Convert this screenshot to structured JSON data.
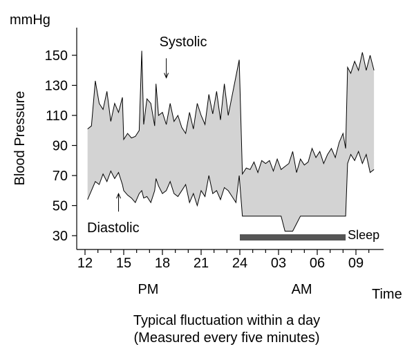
{
  "chart_data": {
    "type": "area",
    "unit_label": "mmHg",
    "ylabel": "Blood Pressure",
    "xlabel": "Time",
    "caption_line1": "Typical fluctuation within a day",
    "caption_line2": "(Measured every five minutes)",
    "ylim": [
      24,
      160
    ],
    "y_ticks": [
      30,
      50,
      70,
      90,
      110,
      130,
      150
    ],
    "x_range_hours": [
      12,
      34.6
    ],
    "x_ticks": [
      {
        "hour": 12,
        "label": "12"
      },
      {
        "hour": 15,
        "label": "15"
      },
      {
        "hour": 18,
        "label": "18"
      },
      {
        "hour": 21,
        "label": "21"
      },
      {
        "hour": 24,
        "label": "24"
      },
      {
        "hour": 27,
        "label": "03"
      },
      {
        "hour": 30,
        "label": "06"
      },
      {
        "hour": 33,
        "label": "09"
      }
    ],
    "periods": [
      {
        "label": "PM",
        "hour": 16.9
      },
      {
        "label": "AM",
        "hour": 28.8
      }
    ],
    "annotations": [
      {
        "label": "Systolic",
        "hour": 18.3,
        "arrow_from": 148,
        "arrow_to": 135
      },
      {
        "label": "Diastolic",
        "hour": 14.6,
        "arrow_from": 46,
        "arrow_to": 58
      }
    ],
    "sleep": {
      "label": "Sleep",
      "start_hour": 24.0,
      "end_hour": 32.2
    },
    "series": [
      {
        "name": "Systolic",
        "x": [
          12.2,
          12.5,
          12.8,
          13.1,
          13.4,
          13.7,
          14.0,
          14.3,
          14.6,
          14.9,
          15.0,
          15.3,
          15.6,
          15.9,
          16.2,
          16.4,
          16.55,
          16.8,
          17.1,
          17.4,
          17.5,
          17.7,
          18.0,
          18.3,
          18.6,
          18.9,
          19.2,
          19.5,
          19.8,
          20.1,
          20.4,
          20.7,
          21.0,
          21.3,
          21.6,
          21.9,
          22.2,
          22.5,
          22.8,
          23.1,
          23.4,
          23.7,
          23.95,
          24.2,
          24.5,
          24.8,
          25.1,
          25.4,
          25.7,
          26.0,
          26.3,
          26.6,
          26.9,
          27.2,
          27.5,
          27.8,
          28.1,
          28.4,
          28.7,
          29.0,
          29.3,
          29.6,
          29.9,
          30.2,
          30.5,
          30.8,
          31.1,
          31.4,
          31.7,
          32.0,
          32.2,
          32.35,
          32.6,
          32.9,
          33.2,
          33.5,
          33.8,
          34.1,
          34.4
        ],
        "values": [
          101,
          103,
          133,
          118,
          114,
          126,
          106,
          118,
          112,
          122,
          94,
          98,
          95,
          96,
          100,
          153,
          104,
          121,
          118,
          103,
          131,
          110,
          112,
          104,
          118,
          106,
          110,
          102,
          98,
          112,
          101,
          118,
          110,
          104,
          124,
          111,
          126,
          107,
          131,
          110,
          123,
          136,
          147,
          71,
          75,
          74,
          79,
          72,
          80,
          78,
          80,
          73,
          81,
          74,
          76,
          78,
          86,
          72,
          81,
          77,
          79,
          88,
          82,
          86,
          78,
          84,
          88,
          82,
          92,
          98,
          88,
          142,
          138,
          146,
          140,
          152,
          140,
          150,
          140
        ]
      },
      {
        "name": "Diastolic",
        "x": [
          12.2,
          12.5,
          12.8,
          13.1,
          13.4,
          13.7,
          14.0,
          14.3,
          14.6,
          14.9,
          15.0,
          15.3,
          15.6,
          15.9,
          16.2,
          16.4,
          16.55,
          16.8,
          17.1,
          17.4,
          17.5,
          17.7,
          18.0,
          18.3,
          18.6,
          18.9,
          19.2,
          19.5,
          19.8,
          20.1,
          20.4,
          20.7,
          21.0,
          21.3,
          21.6,
          21.9,
          22.2,
          22.5,
          22.8,
          23.1,
          23.4,
          23.7,
          23.95,
          24.2,
          24.5,
          24.8,
          25.1,
          25.4,
          25.7,
          26.0,
          26.3,
          26.6,
          26.9,
          27.2,
          27.5,
          27.8,
          28.1,
          28.4,
          28.7,
          29.0,
          29.3,
          29.6,
          29.9,
          30.2,
          30.5,
          30.8,
          31.1,
          31.4,
          31.7,
          32.0,
          32.2,
          32.35,
          32.6,
          32.9,
          33.2,
          33.5,
          33.8,
          34.1,
          34.4
        ],
        "values": [
          54,
          60,
          66,
          64,
          71,
          66,
          73,
          68,
          72,
          64,
          60,
          57,
          55,
          52,
          58,
          60,
          55,
          56,
          52,
          60,
          68,
          63,
          58,
          60,
          66,
          58,
          56,
          60,
          64,
          52,
          58,
          50,
          60,
          56,
          70,
          58,
          60,
          54,
          62,
          60,
          56,
          52,
          70,
          43,
          43,
          43,
          43,
          43,
          43,
          43,
          43,
          43,
          43,
          43,
          33,
          33,
          33,
          38,
          43,
          43,
          43,
          43,
          43,
          43,
          43,
          43,
          43,
          43,
          43,
          43,
          43,
          78,
          84,
          80,
          86,
          78,
          84,
          72,
          74
        ]
      }
    ]
  }
}
